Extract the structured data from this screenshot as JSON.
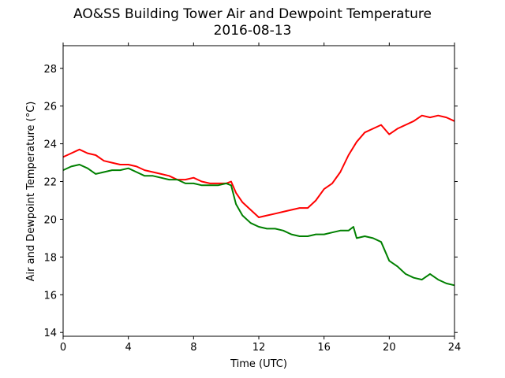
{
  "chart_data": {
    "type": "line",
    "title": "AO&SS Building Tower Air and Dewpoint Temperature",
    "subtitle": "2016-08-13",
    "xlabel": "Time (UTC)",
    "ylabel": "Air and Dewpoint Temperature (°C)",
    "xlim": [
      0,
      24
    ],
    "ylim": [
      13.8,
      29.2
    ],
    "xticks": [
      0,
      4,
      8,
      12,
      16,
      20,
      24
    ],
    "yticks": [
      14,
      16,
      18,
      20,
      22,
      24,
      26,
      28
    ],
    "grid": false,
    "legend": "none",
    "series": [
      {
        "color": "#ff0000",
        "x": [
          0,
          0.5,
          1,
          1.5,
          2,
          2.5,
          3,
          3.5,
          4,
          4.5,
          5,
          5.5,
          6,
          6.5,
          7,
          7.5,
          8,
          8.5,
          9,
          9.5,
          10,
          10.3,
          10.6,
          11,
          11.5,
          12,
          12.5,
          13,
          13.5,
          14,
          14.5,
          15,
          15.5,
          16,
          16.5,
          17,
          17.5,
          18,
          18.5,
          19,
          19.5,
          20,
          20.5,
          21,
          21.5,
          22,
          22.5,
          23,
          23.5,
          24
        ],
        "y": [
          23.3,
          23.5,
          23.7,
          23.5,
          23.4,
          23.1,
          23.0,
          22.9,
          22.9,
          22.8,
          22.6,
          22.5,
          22.4,
          22.3,
          22.1,
          22.1,
          22.2,
          22.0,
          21.9,
          21.9,
          21.9,
          22.0,
          21.4,
          20.9,
          20.5,
          20.1,
          20.2,
          20.3,
          20.4,
          20.5,
          20.6,
          20.6,
          21.0,
          21.6,
          21.9,
          22.5,
          23.4,
          24.1,
          24.6,
          24.8,
          25.0,
          24.5,
          24.8,
          25.0,
          25.2,
          25.5,
          25.4,
          25.5,
          25.4,
          25.2
        ]
      },
      {
        "color": "#008000",
        "x": [
          0,
          0.5,
          1,
          1.5,
          2,
          2.5,
          3,
          3.5,
          4,
          4.5,
          5,
          5.5,
          6,
          6.5,
          7,
          7.5,
          8,
          8.5,
          9,
          9.5,
          10,
          10.3,
          10.6,
          11,
          11.5,
          12,
          12.5,
          13,
          13.5,
          14,
          14.5,
          15,
          15.5,
          16,
          16.5,
          17,
          17.5,
          17.8,
          18,
          18.5,
          19,
          19.5,
          20,
          20.5,
          21,
          21.5,
          22,
          22.5,
          23,
          23.5,
          24
        ],
        "y": [
          22.6,
          22.8,
          22.9,
          22.7,
          22.4,
          22.5,
          22.6,
          22.6,
          22.7,
          22.5,
          22.3,
          22.3,
          22.2,
          22.1,
          22.1,
          21.9,
          21.9,
          21.8,
          21.8,
          21.8,
          21.9,
          21.8,
          20.8,
          20.2,
          19.8,
          19.6,
          19.5,
          19.5,
          19.4,
          19.2,
          19.1,
          19.1,
          19.2,
          19.2,
          19.3,
          19.4,
          19.4,
          19.6,
          19.0,
          19.1,
          19.0,
          18.8,
          17.8,
          17.5,
          17.1,
          16.9,
          16.8,
          17.1,
          16.8,
          16.6,
          16.5
        ]
      }
    ]
  }
}
